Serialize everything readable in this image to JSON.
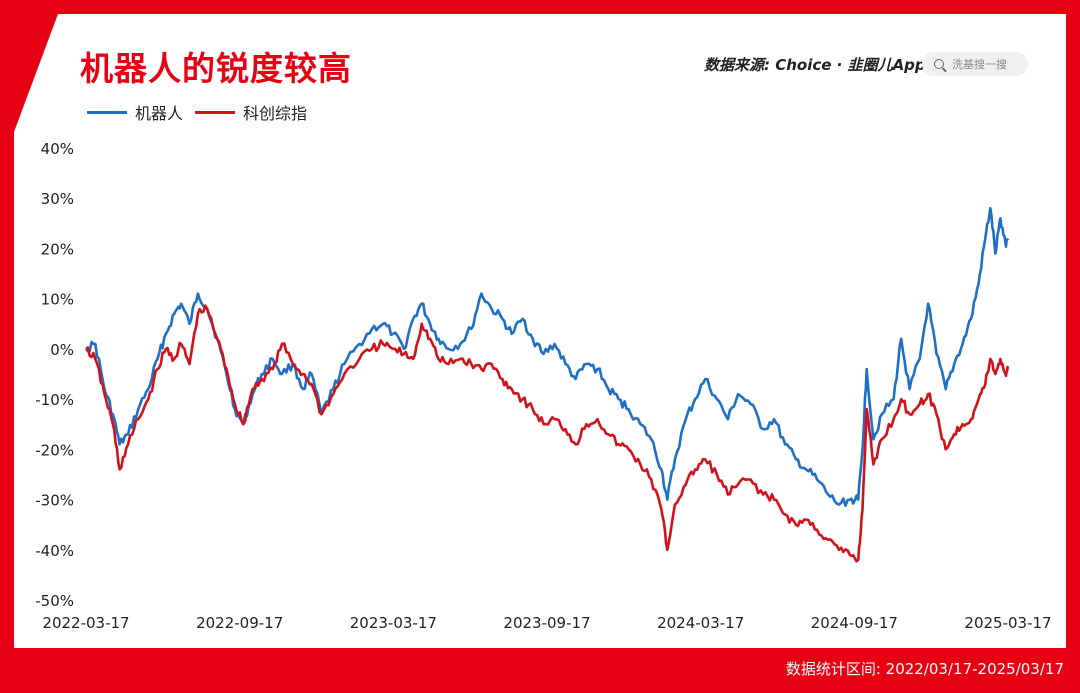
{
  "header": {
    "title": "机器人的锐度较高",
    "source": "数据来源: Choice · 韭圈儿App",
    "search_placeholder": "洗基搜一搜"
  },
  "footer": {
    "period": "数据统计区间: 2022/03/17-2025/03/17"
  },
  "colors": {
    "brand_red": "#e60012",
    "robot_blue": "#1f6fc5",
    "star_red": "#d0121b"
  },
  "chart_data": {
    "type": "line",
    "title": "机器人的锐度较高",
    "xlabel": "",
    "ylabel": "",
    "x_ticks": [
      "2022-03-17",
      "2022-09-17",
      "2023-03-17",
      "2023-09-17",
      "2024-03-17",
      "2024-09-17",
      "2025-03-17"
    ],
    "y_ticks": [
      "40%",
      "30%",
      "20%",
      "10%",
      "0%",
      "-10%",
      "-20%",
      "-30%",
      "-40%",
      "-50%"
    ],
    "ylim": [
      -50,
      40
    ],
    "xlim": [
      "2022-03-17",
      "2025-03-17"
    ],
    "grid": false,
    "legend": "top-left",
    "series": [
      {
        "name": "机器人",
        "color": "#1f6fc5",
        "points": [
          [
            "2022-03-17",
            0
          ],
          [
            "2022-03-28",
            1
          ],
          [
            "2022-04-08",
            -8
          ],
          [
            "2022-04-18",
            -13
          ],
          [
            "2022-04-26",
            -19
          ],
          [
            "2022-05-06",
            -17
          ],
          [
            "2022-05-18",
            -12
          ],
          [
            "2022-05-30",
            -8
          ],
          [
            "2022-06-10",
            -2
          ],
          [
            "2022-06-20",
            3
          ],
          [
            "2022-06-30",
            7
          ],
          [
            "2022-07-08",
            9
          ],
          [
            "2022-07-18",
            5
          ],
          [
            "2022-07-28",
            11
          ],
          [
            "2022-08-08",
            8
          ],
          [
            "2022-08-20",
            2
          ],
          [
            "2022-08-31",
            -5
          ],
          [
            "2022-09-10",
            -12
          ],
          [
            "2022-09-20",
            -15
          ],
          [
            "2022-10-01",
            -9
          ],
          [
            "2022-10-12",
            -5
          ],
          [
            "2022-10-25",
            -2
          ],
          [
            "2022-11-05",
            -5
          ],
          [
            "2022-11-18",
            -3
          ],
          [
            "2022-11-30",
            -8
          ],
          [
            "2022-12-10",
            -5
          ],
          [
            "2022-12-22",
            -13
          ],
          [
            "2023-01-05",
            -8
          ],
          [
            "2023-01-18",
            -3
          ],
          [
            "2023-02-05",
            1
          ],
          [
            "2023-02-20",
            4
          ],
          [
            "2023-03-05",
            5
          ],
          [
            "2023-03-17",
            3
          ],
          [
            "2023-03-30",
            0
          ],
          [
            "2023-04-10",
            6
          ],
          [
            "2023-04-20",
            9
          ],
          [
            "2023-04-30",
            5
          ],
          [
            "2023-05-10",
            2
          ],
          [
            "2023-05-22",
            0
          ],
          [
            "2023-06-05",
            1
          ],
          [
            "2023-06-18",
            4
          ],
          [
            "2023-06-30",
            11
          ],
          [
            "2023-07-12",
            8
          ],
          [
            "2023-07-25",
            6
          ],
          [
            "2023-08-05",
            3
          ],
          [
            "2023-08-18",
            6
          ],
          [
            "2023-08-30",
            2
          ],
          [
            "2023-09-12",
            -1
          ],
          [
            "2023-09-25",
            1
          ],
          [
            "2023-10-08",
            -3
          ],
          [
            "2023-10-20",
            -6
          ],
          [
            "2023-11-02",
            -3
          ],
          [
            "2023-11-15",
            -4
          ],
          [
            "2023-11-28",
            -8
          ],
          [
            "2023-12-10",
            -10
          ],
          [
            "2023-12-22",
            -12
          ],
          [
            "2024-01-05",
            -15
          ],
          [
            "2024-01-18",
            -18
          ],
          [
            "2024-01-30",
            -24
          ],
          [
            "2024-02-06",
            -30
          ],
          [
            "2024-02-15",
            -22
          ],
          [
            "2024-02-28",
            -14
          ],
          [
            "2024-03-10",
            -10
          ],
          [
            "2024-03-22",
            -6
          ],
          [
            "2024-04-05",
            -10
          ],
          [
            "2024-04-18",
            -14
          ],
          [
            "2024-04-30",
            -9
          ],
          [
            "2024-05-15",
            -11
          ],
          [
            "2024-05-30",
            -16
          ],
          [
            "2024-06-12",
            -14
          ],
          [
            "2024-06-25",
            -19
          ],
          [
            "2024-07-08",
            -22
          ],
          [
            "2024-07-20",
            -24
          ],
          [
            "2024-08-02",
            -26
          ],
          [
            "2024-08-15",
            -29
          ],
          [
            "2024-08-28",
            -31
          ],
          [
            "2024-09-10",
            -30
          ],
          [
            "2024-09-20",
            -30
          ],
          [
            "2024-09-25",
            -20
          ],
          [
            "2024-09-30",
            -4
          ],
          [
            "2024-10-08",
            -18
          ],
          [
            "2024-10-18",
            -13
          ],
          [
            "2024-11-01",
            -10
          ],
          [
            "2024-11-10",
            2
          ],
          [
            "2024-11-20",
            -8
          ],
          [
            "2024-12-02",
            -2
          ],
          [
            "2024-12-12",
            9
          ],
          [
            "2024-12-22",
            -1
          ],
          [
            "2025-01-02",
            -8
          ],
          [
            "2025-01-12",
            -3
          ],
          [
            "2025-01-22",
            1
          ],
          [
            "2025-02-01",
            6
          ],
          [
            "2025-02-10",
            13
          ],
          [
            "2025-02-18",
            22
          ],
          [
            "2025-02-24",
            28
          ],
          [
            "2025-03-02",
            19
          ],
          [
            "2025-03-08",
            26
          ],
          [
            "2025-03-14",
            21
          ],
          [
            "2025-03-17",
            22
          ]
        ]
      },
      {
        "name": "科创综指",
        "color": "#d0121b",
        "points": [
          [
            "2022-03-17",
            0
          ],
          [
            "2022-03-28",
            -2
          ],
          [
            "2022-04-08",
            -9
          ],
          [
            "2022-04-18",
            -15
          ],
          [
            "2022-04-26",
            -24
          ],
          [
            "2022-05-06",
            -19
          ],
          [
            "2022-05-18",
            -14
          ],
          [
            "2022-05-30",
            -10
          ],
          [
            "2022-06-10",
            -4
          ],
          [
            "2022-06-20",
            0
          ],
          [
            "2022-06-30",
            -2
          ],
          [
            "2022-07-08",
            1
          ],
          [
            "2022-07-18",
            -3
          ],
          [
            "2022-07-28",
            7
          ],
          [
            "2022-08-08",
            8
          ],
          [
            "2022-08-20",
            2
          ],
          [
            "2022-08-31",
            -4
          ],
          [
            "2022-09-10",
            -11
          ],
          [
            "2022-09-20",
            -15
          ],
          [
            "2022-10-01",
            -8
          ],
          [
            "2022-10-12",
            -6
          ],
          [
            "2022-10-25",
            -4
          ],
          [
            "2022-11-05",
            1
          ],
          [
            "2022-11-18",
            -3
          ],
          [
            "2022-11-30",
            -5
          ],
          [
            "2022-12-10",
            -7
          ],
          [
            "2022-12-22",
            -13
          ],
          [
            "2023-01-05",
            -9
          ],
          [
            "2023-01-18",
            -5
          ],
          [
            "2023-02-05",
            -2
          ],
          [
            "2023-02-20",
            0
          ],
          [
            "2023-03-05",
            1
          ],
          [
            "2023-03-17",
            0
          ],
          [
            "2023-03-30",
            -1
          ],
          [
            "2023-04-10",
            -2
          ],
          [
            "2023-04-20",
            5
          ],
          [
            "2023-04-30",
            2
          ],
          [
            "2023-05-10",
            -2
          ],
          [
            "2023-05-22",
            -3
          ],
          [
            "2023-06-05",
            -2
          ],
          [
            "2023-06-18",
            -3
          ],
          [
            "2023-06-30",
            -4
          ],
          [
            "2023-07-12",
            -3
          ],
          [
            "2023-07-25",
            -6
          ],
          [
            "2023-08-05",
            -8
          ],
          [
            "2023-08-18",
            -10
          ],
          [
            "2023-08-30",
            -12
          ],
          [
            "2023-09-12",
            -15
          ],
          [
            "2023-09-25",
            -14
          ],
          [
            "2023-10-08",
            -16
          ],
          [
            "2023-10-20",
            -19
          ],
          [
            "2023-11-02",
            -15
          ],
          [
            "2023-11-15",
            -14
          ],
          [
            "2023-11-28",
            -17
          ],
          [
            "2023-12-10",
            -19
          ],
          [
            "2023-12-22",
            -20
          ],
          [
            "2024-01-05",
            -23
          ],
          [
            "2024-01-18",
            -26
          ],
          [
            "2024-01-30",
            -32
          ],
          [
            "2024-02-06",
            -40
          ],
          [
            "2024-02-15",
            -31
          ],
          [
            "2024-02-28",
            -27
          ],
          [
            "2024-03-10",
            -24
          ],
          [
            "2024-03-22",
            -22
          ],
          [
            "2024-04-05",
            -25
          ],
          [
            "2024-04-18",
            -29
          ],
          [
            "2024-04-30",
            -27
          ],
          [
            "2024-05-15",
            -26
          ],
          [
            "2024-05-30",
            -29
          ],
          [
            "2024-06-12",
            -30
          ],
          [
            "2024-06-25",
            -33
          ],
          [
            "2024-07-08",
            -35
          ],
          [
            "2024-07-20",
            -34
          ],
          [
            "2024-08-02",
            -36
          ],
          [
            "2024-08-15",
            -38
          ],
          [
            "2024-08-28",
            -40
          ],
          [
            "2024-09-10",
            -41
          ],
          [
            "2024-09-20",
            -42
          ],
          [
            "2024-09-25",
            -32
          ],
          [
            "2024-09-30",
            -12
          ],
          [
            "2024-10-08",
            -23
          ],
          [
            "2024-10-18",
            -18
          ],
          [
            "2024-11-01",
            -14
          ],
          [
            "2024-11-10",
            -10
          ],
          [
            "2024-11-20",
            -13
          ],
          [
            "2024-12-02",
            -11
          ],
          [
            "2024-12-12",
            -9
          ],
          [
            "2024-12-22",
            -13
          ],
          [
            "2025-01-02",
            -20
          ],
          [
            "2025-01-12",
            -17
          ],
          [
            "2025-01-22",
            -15
          ],
          [
            "2025-02-01",
            -14
          ],
          [
            "2025-02-10",
            -10
          ],
          [
            "2025-02-18",
            -7
          ],
          [
            "2025-02-24",
            -2
          ],
          [
            "2025-03-02",
            -5
          ],
          [
            "2025-03-08",
            -2
          ],
          [
            "2025-03-14",
            -5
          ],
          [
            "2025-03-17",
            -4
          ]
        ]
      }
    ]
  }
}
